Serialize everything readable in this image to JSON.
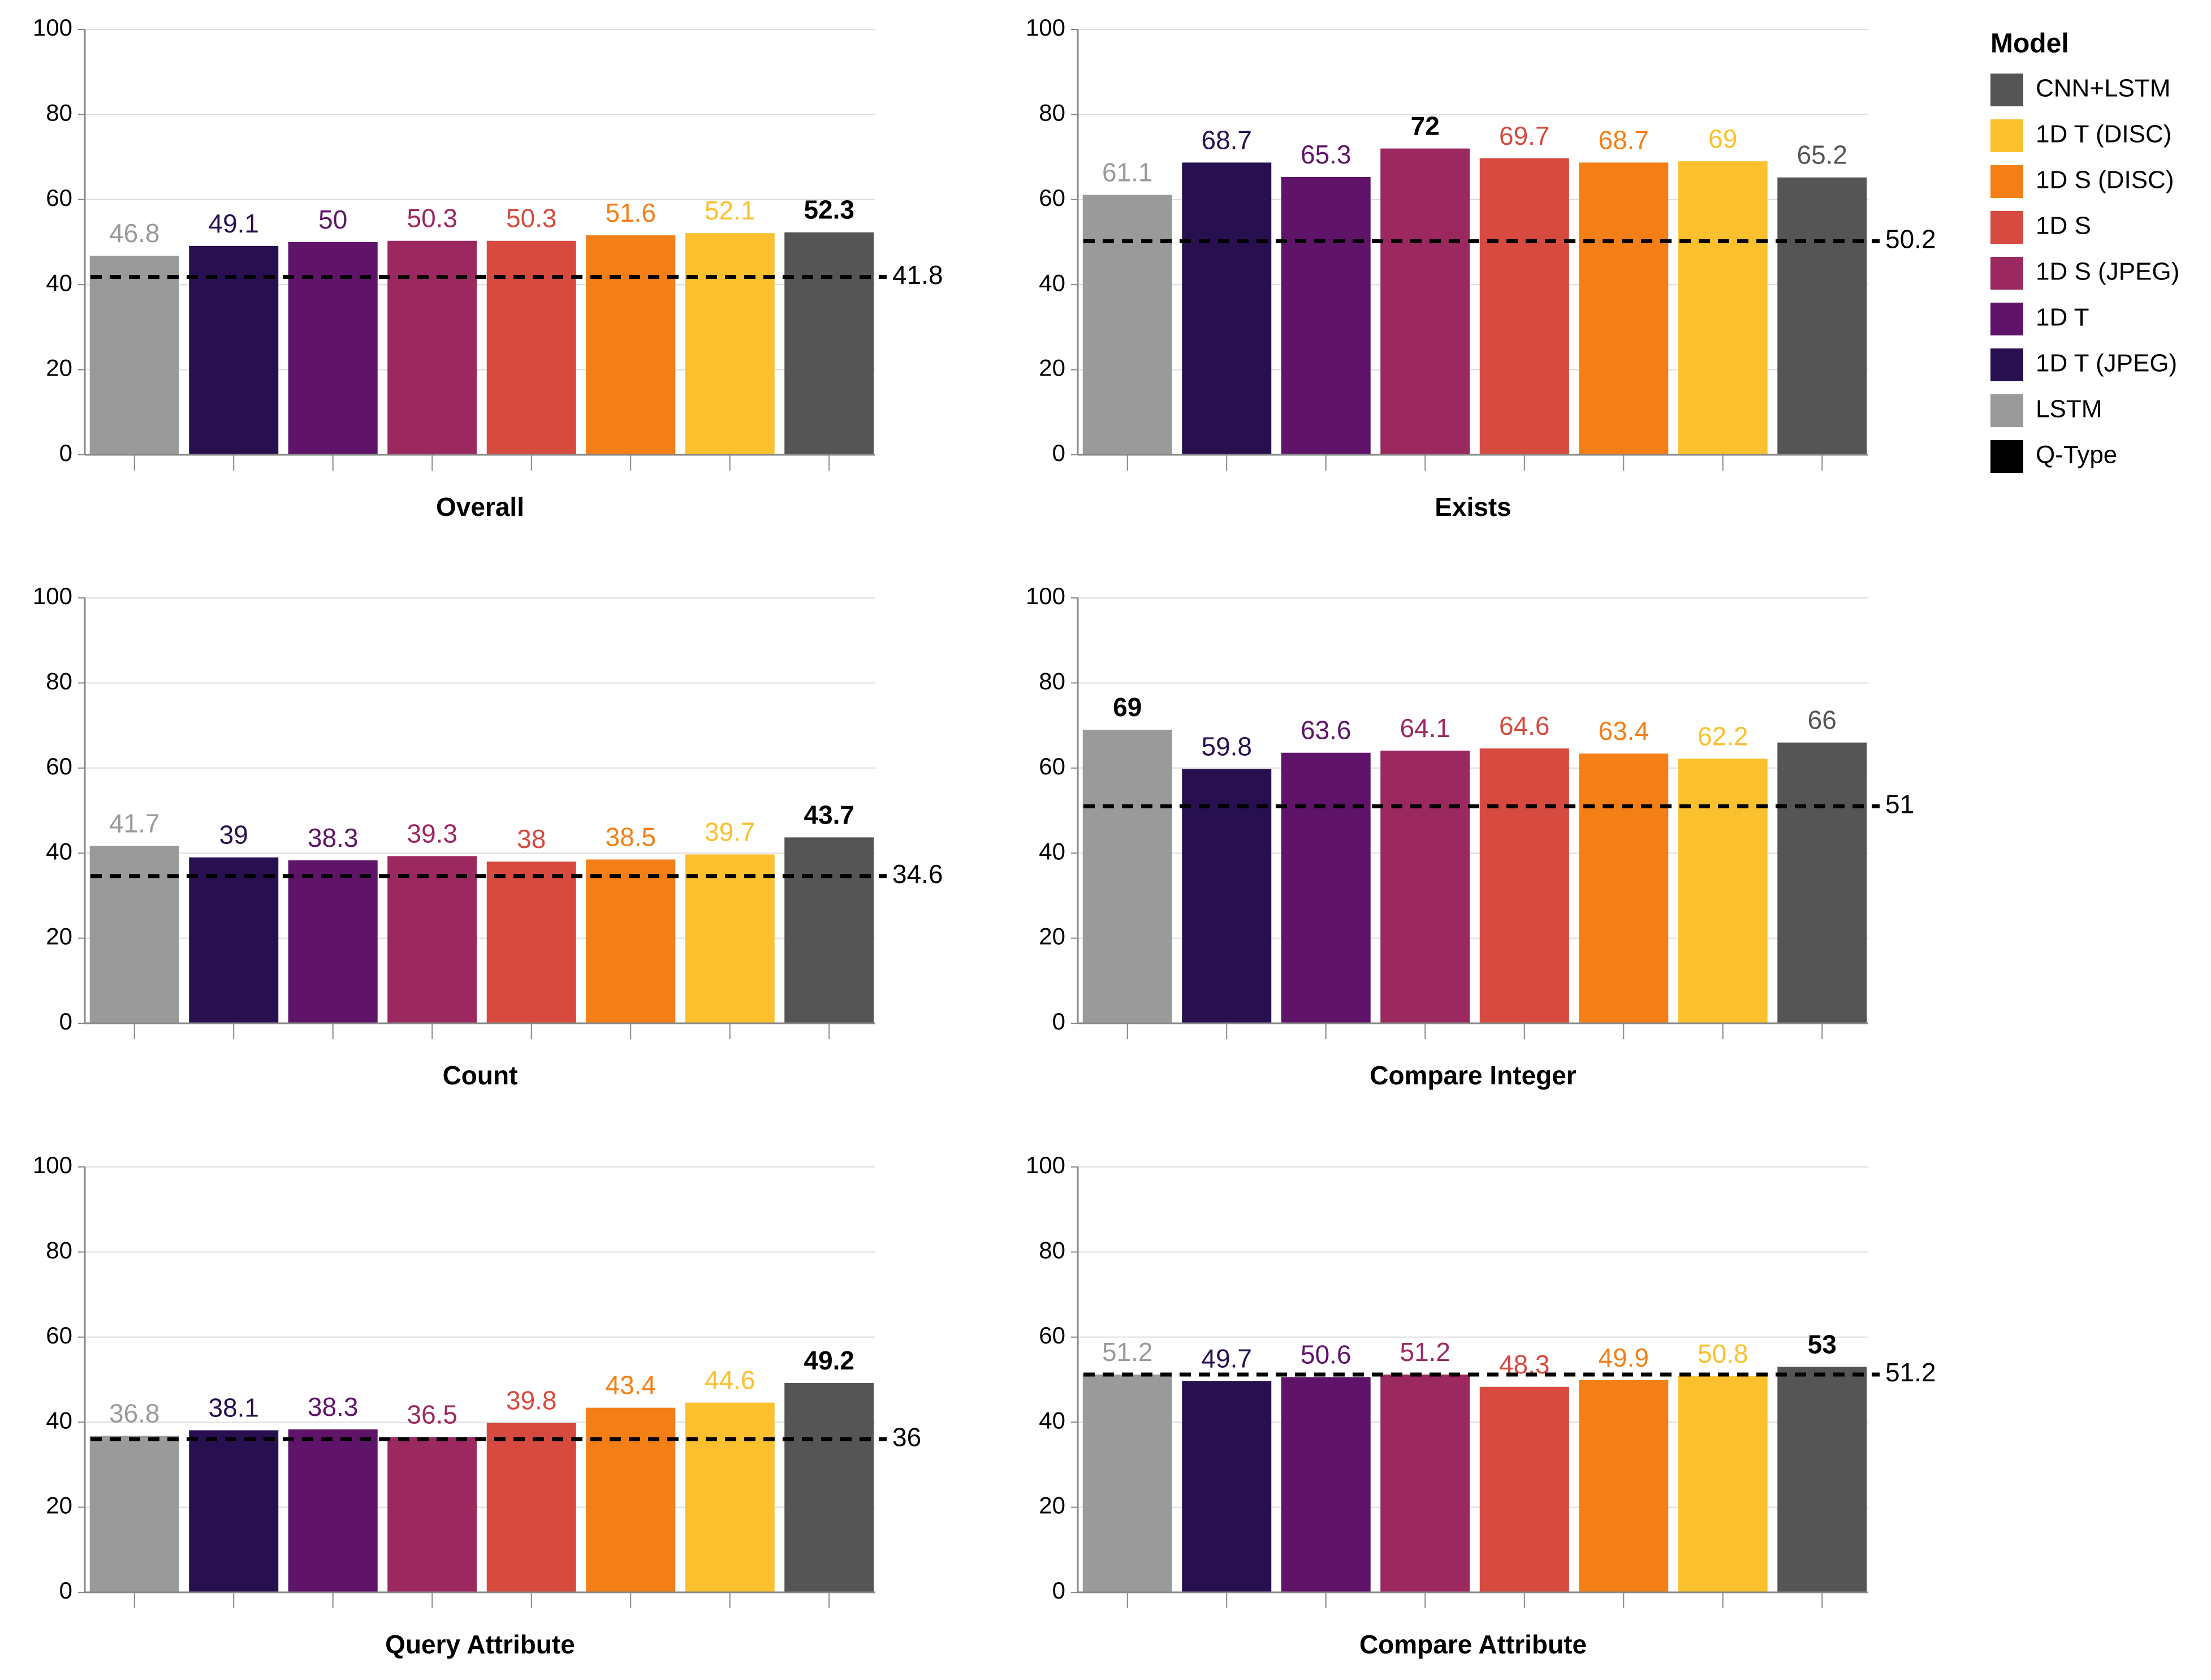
{
  "legend": {
    "title": "Model",
    "items": [
      {
        "label": "CNN+LSTM",
        "color": "#555555"
      },
      {
        "label": "1D T (DISC)",
        "color": "#fbc02d"
      },
      {
        "label": "1D S (DISC)",
        "color": "#f57f17"
      },
      {
        "label": "1D S",
        "color": "#d64a40"
      },
      {
        "label": "1D S (JPEG)",
        "color": "#9c2860"
      },
      {
        "label": "1D T",
        "color": "#5f1469"
      },
      {
        "label": "1D T (JPEG)",
        "color": "#281050"
      },
      {
        "label": "LSTM",
        "color": "#9a9a9a"
      },
      {
        "label": "Q-Type",
        "color": "#000000"
      }
    ]
  },
  "chart_data": [
    {
      "type": "bar",
      "title": "Overall",
      "categories": [
        "LSTM",
        "1D T (JPEG)",
        "1D T",
        "1D S (JPEG)",
        "1D S",
        "1D S (DISC)",
        "1D T (DISC)",
        "CNN+LSTM"
      ],
      "values": [
        46.8,
        49.1,
        50,
        50.3,
        50.3,
        51.6,
        52.1,
        52.3
      ],
      "value_labels": [
        "46.8",
        "49.1",
        "50",
        "50.3",
        "50.3",
        "51.6",
        "52.1",
        "52.3"
      ],
      "bold_index": 7,
      "reference_line": {
        "name": "Q-Type",
        "value": 41.8,
        "label": "41.8"
      },
      "ylim": [
        0,
        100
      ],
      "yticks": [
        "0",
        "20",
        "40",
        "60",
        "80",
        "100"
      ]
    },
    {
      "type": "bar",
      "title": "Exists",
      "categories": [
        "LSTM",
        "1D T (JPEG)",
        "1D T",
        "1D S (JPEG)",
        "1D S",
        "1D S (DISC)",
        "1D T (DISC)",
        "CNN+LSTM"
      ],
      "values": [
        61.1,
        68.7,
        65.3,
        72,
        69.7,
        68.7,
        69,
        65.2
      ],
      "value_labels": [
        "61.1",
        "68.7",
        "65.3",
        "72",
        "69.7",
        "68.7",
        "69",
        "65.2"
      ],
      "bold_index": 3,
      "reference_line": {
        "name": "Q-Type",
        "value": 50.2,
        "label": "50.2"
      },
      "ylim": [
        0,
        100
      ],
      "yticks": [
        "0",
        "20",
        "40",
        "60",
        "80",
        "100"
      ]
    },
    {
      "type": "bar",
      "title": "Count",
      "categories": [
        "LSTM",
        "1D T (JPEG)",
        "1D T",
        "1D S (JPEG)",
        "1D S",
        "1D S (DISC)",
        "1D T (DISC)",
        "CNN+LSTM"
      ],
      "values": [
        41.7,
        39,
        38.3,
        39.3,
        38,
        38.5,
        39.7,
        43.7
      ],
      "value_labels": [
        "41.7",
        "39",
        "38.3",
        "39.3",
        "38",
        "38.5",
        "39.7",
        "43.7"
      ],
      "bold_index": 7,
      "reference_line": {
        "name": "Q-Type",
        "value": 34.6,
        "label": "34.6"
      },
      "ylim": [
        0,
        100
      ],
      "yticks": [
        "0",
        "20",
        "40",
        "60",
        "80",
        "100"
      ]
    },
    {
      "type": "bar",
      "title": "Compare Integer",
      "categories": [
        "LSTM",
        "1D T (JPEG)",
        "1D T",
        "1D S (JPEG)",
        "1D S",
        "1D S (DISC)",
        "1D T (DISC)",
        "CNN+LSTM"
      ],
      "values": [
        69,
        59.8,
        63.6,
        64.1,
        64.6,
        63.4,
        62.2,
        66
      ],
      "value_labels": [
        "69",
        "59.8",
        "63.6",
        "64.1",
        "64.6",
        "63.4",
        "62.2",
        "66"
      ],
      "bold_index": 0,
      "reference_line": {
        "name": "Q-Type",
        "value": 51,
        "label": "51"
      },
      "ylim": [
        0,
        100
      ],
      "yticks": [
        "0",
        "20",
        "40",
        "60",
        "80",
        "100"
      ]
    },
    {
      "type": "bar",
      "title": "Query Attribute",
      "categories": [
        "LSTM",
        "1D T (JPEG)",
        "1D T",
        "1D S (JPEG)",
        "1D S",
        "1D S (DISC)",
        "1D T (DISC)",
        "CNN+LSTM"
      ],
      "values": [
        36.8,
        38.1,
        38.3,
        36.5,
        39.8,
        43.4,
        44.6,
        49.2
      ],
      "value_labels": [
        "36.8",
        "38.1",
        "38.3",
        "36.5",
        "39.8",
        "43.4",
        "44.6",
        "49.2"
      ],
      "bold_index": 7,
      "reference_line": {
        "name": "Q-Type",
        "value": 36,
        "label": "36"
      },
      "ylim": [
        0,
        100
      ],
      "yticks": [
        "0",
        "20",
        "40",
        "60",
        "80",
        "100"
      ]
    },
    {
      "type": "bar",
      "title": "Compare Attribute",
      "categories": [
        "LSTM",
        "1D T (JPEG)",
        "1D T",
        "1D S (JPEG)",
        "1D S",
        "1D S (DISC)",
        "1D T (DISC)",
        "CNN+LSTM"
      ],
      "values": [
        51.2,
        49.7,
        50.6,
        51.2,
        48.3,
        49.9,
        50.8,
        53
      ],
      "value_labels": [
        "51.2",
        "49.7",
        "50.6",
        "51.2",
        "48.3",
        "49.9",
        "50.8",
        "53"
      ],
      "bold_index": 7,
      "reference_line": {
        "name": "Q-Type",
        "value": 51.2,
        "label": "51.2"
      },
      "ylim": [
        0,
        100
      ],
      "yticks": [
        "0",
        "20",
        "40",
        "60",
        "80",
        "100"
      ]
    }
  ]
}
